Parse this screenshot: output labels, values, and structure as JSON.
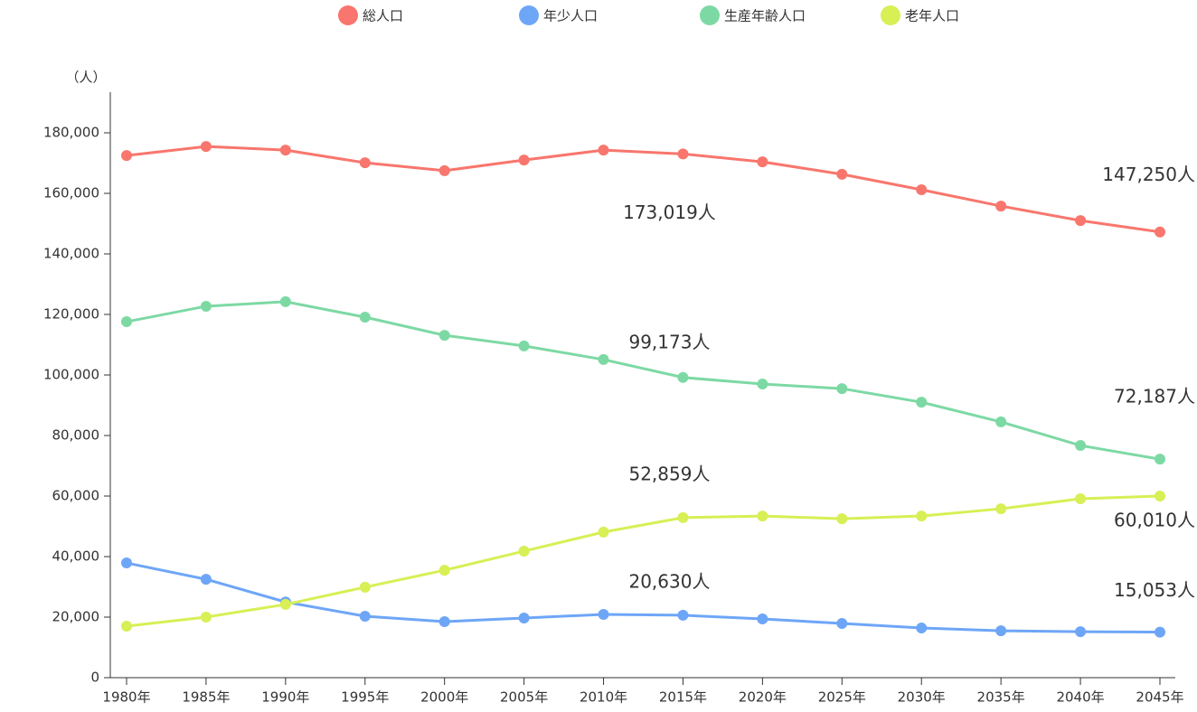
{
  "chart_data": {
    "type": "line",
    "y_unit": "（人）",
    "categories": [
      "1980年",
      "1985年",
      "1990年",
      "1995年",
      "2000年",
      "2005年",
      "2010年",
      "2015年",
      "2020年",
      "2025年",
      "2030年",
      "2035年",
      "2040年",
      "2045年"
    ],
    "series": [
      {
        "name": "総人口",
        "color": "#f8766d",
        "label_color": "#e8000b",
        "values": [
          172500,
          175500,
          174300,
          170100,
          167500,
          171000,
          174300,
          173019,
          170400,
          166300,
          161200,
          155800,
          151000,
          147250
        ],
        "value_labels": [
          null,
          null,
          null,
          null,
          null,
          null,
          null,
          "173,019人",
          null,
          null,
          null,
          null,
          null,
          "147,250人"
        ]
      },
      {
        "name": "年少人口",
        "color": "#6ea6f7",
        "label_color": "#1aa7dc",
        "values": [
          37900,
          32500,
          25000,
          20300,
          18500,
          19700,
          20900,
          20630,
          19400,
          17900,
          16400,
          15500,
          15200,
          15053
        ],
        "value_labels": [
          null,
          null,
          null,
          null,
          null,
          null,
          null,
          "20,630人",
          null,
          null,
          null,
          null,
          null,
          "15,053人"
        ]
      },
      {
        "name": "生産年齢人口",
        "color": "#7dd9a4",
        "label_color": "#8cc63f",
        "values": [
          117600,
          122700,
          124200,
          119100,
          113100,
          109600,
          105100,
          99173,
          97000,
          95500,
          91000,
          84500,
          76700,
          72187
        ],
        "value_labels": [
          null,
          null,
          null,
          null,
          null,
          null,
          null,
          "99,173人",
          null,
          null,
          null,
          null,
          null,
          "72,187人"
        ]
      },
      {
        "name": "老年人口",
        "color": "#d8ef55",
        "label_color": "#e0007a",
        "values": [
          17000,
          20000,
          24200,
          29900,
          35500,
          41800,
          48100,
          52859,
          53400,
          52500,
          53400,
          55800,
          59100,
          60010
        ],
        "value_labels": [
          null,
          null,
          null,
          null,
          null,
          null,
          null,
          "52,859人",
          null,
          null,
          null,
          null,
          null,
          "60,010人"
        ]
      }
    ],
    "ylim": [
      0,
      190000
    ],
    "yticks": [
      0,
      {
        "value": 20000,
        "label": "20,000"
      },
      {
        "value": 40000,
        "label": "40,000"
      },
      {
        "value": 60000,
        "label": "60,000"
      },
      {
        "value": 80000,
        "label": "80,000"
      },
      {
        "value": 100000,
        "label": "100,000"
      },
      {
        "value": 120000,
        "label": "120,000"
      },
      {
        "value": 140000,
        "label": "140,000"
      },
      {
        "value": 160000,
        "label": "160,000"
      },
      {
        "value": 180000,
        "label": "180,000"
      }
    ],
    "legend": "top"
  }
}
